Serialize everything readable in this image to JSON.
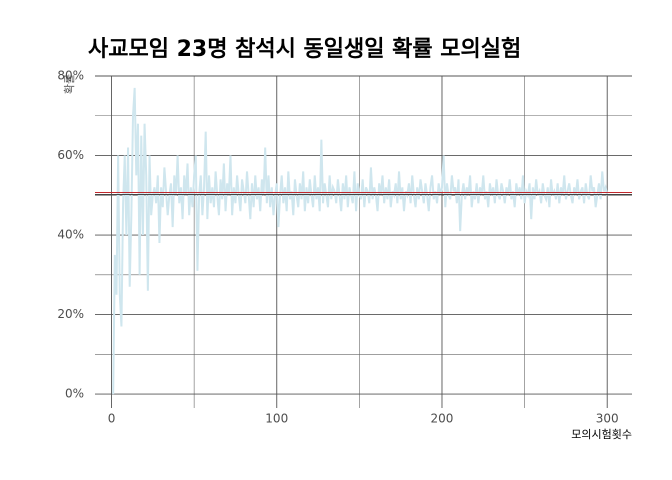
{
  "chart_data": {
    "type": "line",
    "title": "사교모임 23명 참석시 동일생일 확률 모의실험",
    "y_label": "확률",
    "x_label": "모의시험횟수",
    "xlim": [
      -10,
      315
    ],
    "xticks": [
      0,
      100,
      200,
      300
    ],
    "x_minor_ticks": [
      50,
      150,
      250
    ],
    "ylim": [
      -3.5,
      80
    ],
    "yticks": [
      {
        "value": 0,
        "label": "0%"
      },
      {
        "value": 20,
        "label": "20%"
      },
      {
        "value": 40,
        "label": "40%"
      },
      {
        "value": 60,
        "label": "60%"
      },
      {
        "value": 80,
        "label": "80%"
      }
    ],
    "y_minor_ticks": [
      10,
      30,
      50,
      70
    ],
    "grid": true,
    "reference_lines": [
      {
        "value": 50.7,
        "color": "#c0282d"
      },
      {
        "value": 50.2,
        "color": "#444444"
      }
    ],
    "series": [
      {
        "color": "#cfe6ee",
        "x": [
          1,
          2,
          3,
          4,
          5,
          6,
          7,
          8,
          9,
          10,
          11,
          12,
          13,
          14,
          15,
          16,
          17,
          18,
          19,
          20,
          21,
          22,
          23,
          24,
          25,
          26,
          27,
          28,
          29,
          30,
          31,
          32,
          33,
          34,
          35,
          36,
          37,
          38,
          39,
          40,
          41,
          42,
          43,
          44,
          45,
          46,
          47,
          48,
          49,
          50,
          51,
          52,
          53,
          54,
          55,
          56,
          57,
          58,
          59,
          60,
          61,
          62,
          63,
          64,
          65,
          66,
          67,
          68,
          69,
          70,
          71,
          72,
          73,
          74,
          75,
          76,
          77,
          78,
          79,
          80,
          81,
          82,
          83,
          84,
          85,
          86,
          87,
          88,
          89,
          90,
          91,
          92,
          93,
          94,
          95,
          96,
          97,
          98,
          99,
          100,
          101,
          102,
          103,
          104,
          105,
          106,
          107,
          108,
          109,
          110,
          111,
          112,
          113,
          114,
          115,
          116,
          117,
          118,
          119,
          120,
          121,
          122,
          123,
          124,
          125,
          126,
          127,
          128,
          129,
          130,
          131,
          132,
          133,
          134,
          135,
          136,
          137,
          138,
          139,
          140,
          141,
          142,
          143,
          144,
          145,
          146,
          147,
          148,
          149,
          150,
          151,
          152,
          153,
          154,
          155,
          156,
          157,
          158,
          159,
          160,
          161,
          162,
          163,
          164,
          165,
          166,
          167,
          168,
          169,
          170,
          171,
          172,
          173,
          174,
          175,
          176,
          177,
          178,
          179,
          180,
          181,
          182,
          183,
          184,
          185,
          186,
          187,
          188,
          189,
          190,
          191,
          192,
          193,
          194,
          195,
          196,
          197,
          198,
          199,
          200,
          201,
          202,
          203,
          204,
          205,
          206,
          207,
          208,
          209,
          210,
          211,
          212,
          213,
          214,
          215,
          216,
          217,
          218,
          219,
          220,
          221,
          222,
          223,
          224,
          225,
          226,
          227,
          228,
          229,
          230,
          231,
          232,
          233,
          234,
          235,
          236,
          237,
          238,
          239,
          240,
          241,
          242,
          243,
          244,
          245,
          246,
          247,
          248,
          249,
          250,
          251,
          252,
          253,
          254,
          255,
          256,
          257,
          258,
          259,
          260,
          261,
          262,
          263,
          264,
          265,
          266,
          267,
          268,
          269,
          270,
          271,
          272,
          273,
          274,
          275,
          276,
          277,
          278,
          279,
          280,
          281,
          282,
          283,
          284,
          285,
          286,
          287,
          288,
          289,
          290,
          291,
          292,
          293,
          294,
          295,
          296,
          297,
          298,
          299,
          300
        ],
        "values": [
          0,
          35,
          25,
          60,
          25,
          17,
          48,
          60,
          40,
          62,
          27,
          45,
          70,
          77,
          55,
          68,
          30,
          65,
          40,
          68,
          55,
          26,
          60,
          45,
          50,
          52,
          48,
          55,
          38,
          52,
          47,
          57,
          51,
          45,
          50,
          53,
          42,
          55,
          50,
          60,
          48,
          52,
          44,
          55,
          50,
          58,
          45,
          52,
          47,
          55,
          60,
          31,
          50,
          55,
          45,
          52,
          66,
          44,
          55,
          48,
          52,
          47,
          56,
          50,
          45,
          54,
          49,
          58,
          46,
          53,
          50,
          60,
          45,
          52,
          48,
          55,
          50,
          46,
          54,
          51,
          48,
          56,
          50,
          44,
          53,
          47,
          55,
          49,
          52,
          46,
          54,
          50,
          62,
          48,
          55,
          47,
          52,
          45,
          50,
          53,
          42,
          50,
          55,
          48,
          52,
          46,
          56,
          49,
          51,
          45,
          54,
          50,
          47,
          53,
          49,
          56,
          46,
          52,
          48,
          54,
          50,
          47,
          55,
          49,
          52,
          46,
          64,
          48,
          53,
          50,
          47,
          55,
          49,
          52,
          51,
          48,
          54,
          50,
          46,
          53,
          49,
          55,
          47,
          52,
          50,
          48,
          56,
          46,
          53,
          50,
          49,
          54,
          47,
          52,
          51,
          48,
          57,
          49,
          52,
          50,
          46,
          53,
          50,
          55,
          48,
          52,
          49,
          54,
          47,
          51,
          50,
          53,
          48,
          56,
          49,
          52,
          46,
          51,
          50,
          53,
          48,
          55,
          50,
          47,
          52,
          49,
          54,
          51,
          48,
          53,
          50,
          46,
          52,
          55,
          49,
          51,
          48,
          53,
          50,
          52,
          60,
          47,
          53,
          50,
          49,
          55,
          51,
          52,
          48,
          54,
          41,
          50,
          53,
          49,
          52,
          50,
          55,
          47,
          51,
          49,
          53,
          48,
          52,
          50,
          55,
          49,
          51,
          47,
          53,
          50,
          52,
          48,
          54,
          50,
          49,
          53,
          51,
          48,
          52,
          50,
          54,
          49,
          51,
          47,
          53,
          50,
          52,
          49,
          55,
          48,
          51,
          50,
          53,
          44,
          52,
          49,
          54,
          50,
          51,
          48,
          53,
          50,
          49,
          52,
          47,
          54,
          50,
          51,
          49,
          53,
          48,
          52,
          50,
          55,
          49,
          51,
          53,
          50,
          48,
          52,
          50,
          54,
          49,
          51,
          52,
          48,
          53,
          50,
          49,
          55,
          51,
          52,
          47,
          50,
          53,
          49,
          56,
          51,
          52,
          50
        ]
      }
    ]
  }
}
